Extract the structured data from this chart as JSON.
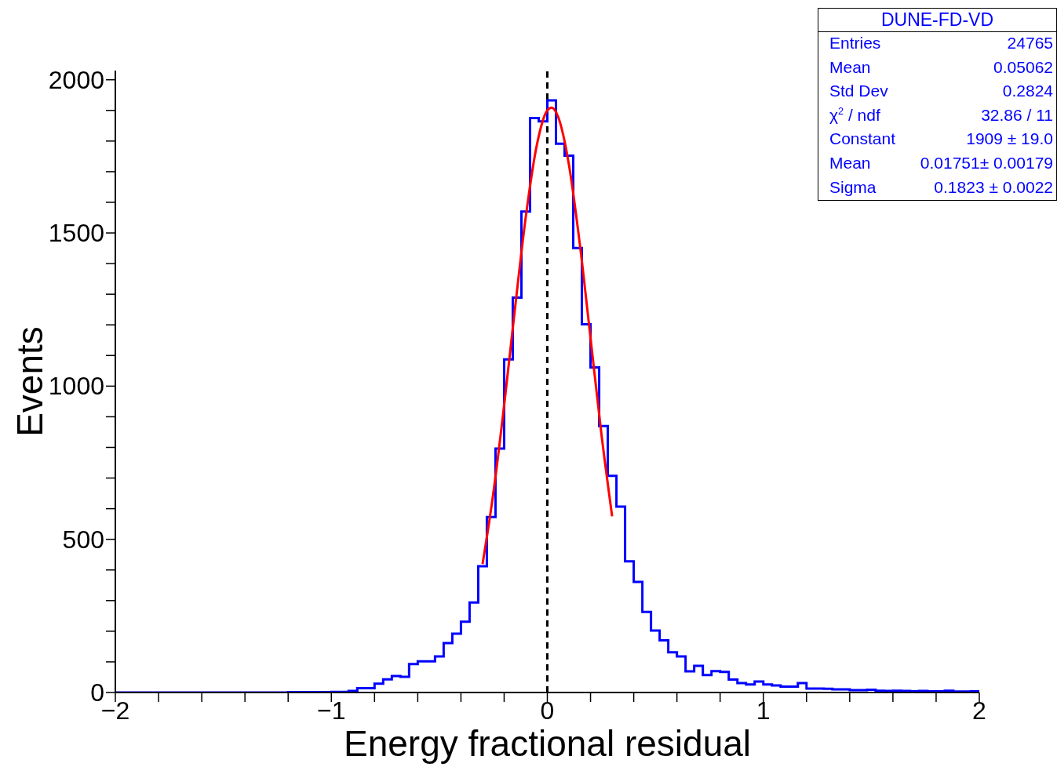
{
  "chart_data": {
    "type": "histogram",
    "title": "DUNE-FD-VD",
    "xlabel": "Energy fractional residual",
    "ylabel": "Events",
    "bins": [
      -2,
      -1.96,
      -1.92,
      -1.88,
      -1.84,
      -1.8,
      -1.76,
      -1.72,
      -1.68,
      -1.64,
      -1.6,
      -1.56,
      -1.52,
      -1.48,
      -1.44,
      -1.4,
      -1.36,
      -1.32,
      -1.28,
      -1.24,
      -1.2,
      -1.16,
      -1.12,
      -1.08,
      -1.04,
      -1,
      -0.96,
      -0.92,
      -0.88,
      -0.84,
      -0.8,
      -0.76,
      -0.72,
      -0.68,
      -0.64,
      -0.6,
      -0.56,
      -0.52,
      -0.48,
      -0.44,
      -0.4,
      -0.36,
      -0.32,
      -0.28,
      -0.24,
      -0.2,
      -0.16,
      -0.12,
      -0.08,
      -0.04,
      0,
      0.04,
      0.08,
      0.12,
      0.16,
      0.2,
      0.24,
      0.28,
      0.32,
      0.36,
      0.4,
      0.44,
      0.48,
      0.52,
      0.56,
      0.6,
      0.64,
      0.68,
      0.72,
      0.76,
      0.8,
      0.84,
      0.88,
      0.92,
      0.96,
      1,
      1.04,
      1.08,
      1.12,
      1.16,
      1.2,
      1.24,
      1.28,
      1.32,
      1.36,
      1.4,
      1.44,
      1.48,
      1.52,
      1.56,
      1.6,
      1.64,
      1.68,
      1.72,
      1.76,
      1.8,
      1.84,
      1.88,
      1.92,
      1.96,
      2
    ],
    "series": [
      {
        "type": "histogram",
        "color": "#0000ff",
        "values": [
          0,
          0,
          0,
          0,
          0,
          0,
          0,
          0,
          0,
          0,
          0,
          0,
          0,
          0,
          0,
          0,
          0,
          0,
          0,
          0,
          1,
          1,
          1,
          1,
          1,
          2,
          2,
          5,
          14,
          14,
          29,
          43,
          54,
          51,
          93,
          102,
          102,
          118,
          161,
          192,
          231,
          294,
          412,
          573,
          796,
          1087,
          1289,
          1570,
          1875,
          1864,
          1933,
          1791,
          1752,
          1451,
          1202,
          1061,
          870,
          707,
          607,
          428,
          361,
          263,
          202,
          170,
          131,
          118,
          69,
          87,
          57,
          70,
          67,
          42,
          31,
          26,
          36,
          26,
          23,
          19,
          19,
          31,
          13,
          13,
          12,
          10,
          10,
          8,
          8,
          9,
          6,
          5,
          6,
          5,
          4,
          5,
          4,
          4,
          6,
          3,
          3,
          4
        ]
      },
      {
        "type": "line",
        "color": "#ff0000",
        "x": [
          -0.3,
          -0.25,
          -0.2,
          -0.15,
          -0.1,
          -0.05,
          0,
          0.02,
          0.05,
          0.1,
          0.15,
          0.2,
          0.25,
          0.3
        ],
        "values": [
          419,
          651,
          937,
          1252,
          1551,
          1782,
          1900,
          1909,
          1879,
          1723,
          1466,
          1157,
          846,
          575
        ]
      }
    ],
    "xlim": [
      -2,
      2
    ],
    "xticks": [
      {
        "value": -2,
        "label": "−2"
      },
      {
        "value": -1.8,
        "label": null
      },
      {
        "value": -1.6,
        "label": null
      },
      {
        "value": -1.4,
        "label": null
      },
      {
        "value": -1.2,
        "label": null
      },
      {
        "value": -1,
        "label": "−1"
      },
      {
        "value": -0.8,
        "label": null
      },
      {
        "value": -0.6,
        "label": null
      },
      {
        "value": -0.4,
        "label": null
      },
      {
        "value": -0.2,
        "label": null
      },
      0,
      {
        "value": 0.2,
        "label": null
      },
      {
        "value": 0.4,
        "label": null
      },
      {
        "value": 0.6,
        "label": null
      },
      {
        "value": 0.8,
        "label": null
      },
      1,
      {
        "value": 1.2,
        "label": null
      },
      {
        "value": 1.4,
        "label": null
      },
      {
        "value": 1.6,
        "label": null
      },
      {
        "value": 1.8,
        "label": null
      },
      2
    ],
    "ylim": [
      0,
      2030
    ],
    "yticks": [
      0,
      {
        "value": 100,
        "label": null
      },
      {
        "value": 200,
        "label": null
      },
      {
        "value": 300,
        "label": null
      },
      {
        "value": 400,
        "label": null
      },
      500,
      {
        "value": 600,
        "label": null
      },
      {
        "value": 700,
        "label": null
      },
      {
        "value": 800,
        "label": null
      },
      {
        "value": 900,
        "label": null
      },
      1000,
      {
        "value": 1100,
        "label": null
      },
      {
        "value": 1200,
        "label": null
      },
      {
        "value": 1300,
        "label": null
      },
      {
        "value": 1400,
        "label": null
      },
      1500,
      {
        "value": 1600,
        "label": null
      },
      {
        "value": 1700,
        "label": null
      },
      {
        "value": 1800,
        "label": null
      },
      {
        "value": 1900,
        "label": null
      },
      2000
    ],
    "ref_lines": [
      {
        "axis": "x",
        "value": 0,
        "color": "#000000",
        "line_style": "dashed"
      }
    ],
    "annotations": [
      "Entries",
      "24765",
      "Mean",
      "0.05062",
      "Std Dev",
      "0.2824",
      "χ$^{2}$ / ndf",
      "32.86 / 11",
      "Constant",
      "1909 ± 19.0",
      "Mean",
      "0.01751± 0.00179",
      "Sigma",
      "0.1823 ± 0.0022"
    ],
    "grid": false,
    "marker": "none"
  }
}
